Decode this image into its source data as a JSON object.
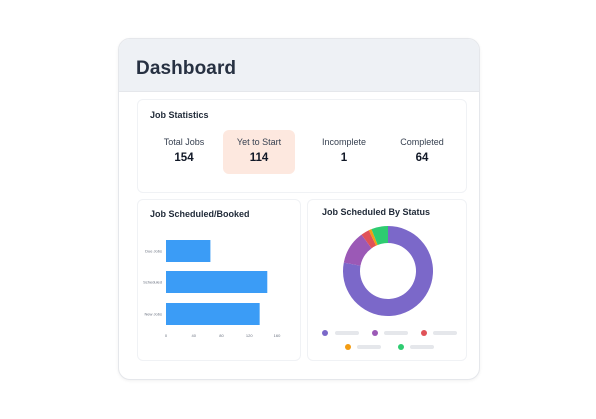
{
  "header": {
    "title": "Dashboard"
  },
  "job_statistics": {
    "title": "Job Statistics",
    "items": [
      {
        "label": "Total Jobs",
        "value": "154",
        "highlighted": false
      },
      {
        "label": "Yet to Start",
        "value": "114",
        "highlighted": true
      },
      {
        "label": "Incomplete",
        "value": "1",
        "highlighted": false
      },
      {
        "label": "Completed",
        "value": "64",
        "highlighted": false
      }
    ]
  },
  "colors": {
    "bar": "#3b9cf6",
    "highlight_bg": "#fde8df",
    "donut": [
      "#7b68c9",
      "#9b59b6",
      "#e05258",
      "#f39c12",
      "#2ecc71"
    ]
  },
  "chart_data": [
    {
      "type": "bar",
      "orientation": "horizontal",
      "title": "Job Scheduled/Booked",
      "categories": [
        "Due Jobs",
        "Scheduled",
        "New Jobs"
      ],
      "values": [
        64,
        146,
        135
      ],
      "xlim": [
        0,
        160
      ],
      "xticks": [
        "0",
        "40",
        "80",
        "120",
        "160"
      ]
    },
    {
      "type": "pie",
      "variant": "donut",
      "title": "Job Scheduled By Status",
      "values": [
        78,
        12,
        3,
        1,
        6
      ],
      "colors": [
        "#7b68c9",
        "#9b59b6",
        "#e05258",
        "#f39c12",
        "#2ecc71"
      ]
    }
  ]
}
